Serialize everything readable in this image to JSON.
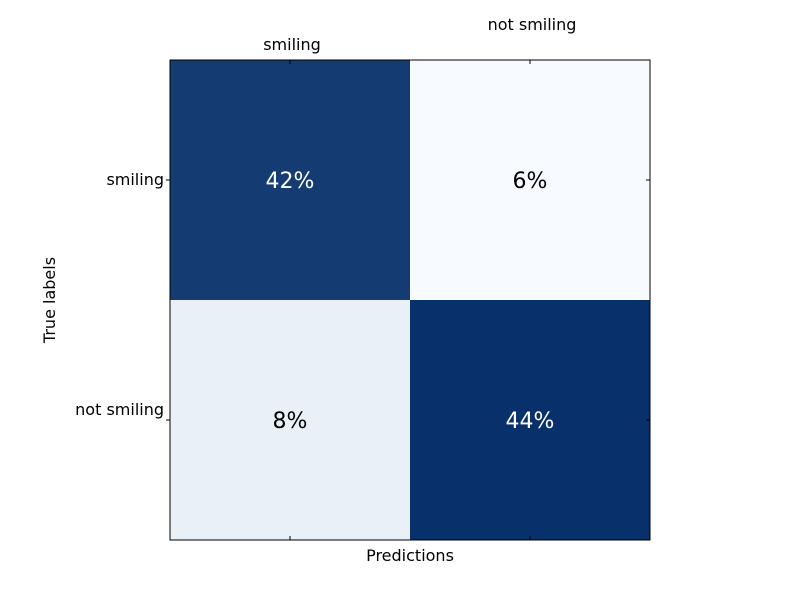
{
  "chart_data": {
    "type": "heatmap",
    "title": "",
    "xlabel": "Predictions",
    "ylabel": "True labels",
    "x_categories": [
      "smiling",
      "not smiling"
    ],
    "y_categories": [
      "smiling",
      "not smiling"
    ],
    "values": [
      [
        42,
        6
      ],
      [
        8,
        44
      ]
    ],
    "cell_labels": [
      [
        "42%",
        "6%"
      ],
      [
        "8%",
        "44%"
      ]
    ],
    "x_tick_position": "top",
    "colormap": "Blues",
    "colors": {
      "low": "#f7fbff",
      "high": "#08306b",
      "text_light": "#ffffff",
      "text_dark": "#000000"
    }
  }
}
